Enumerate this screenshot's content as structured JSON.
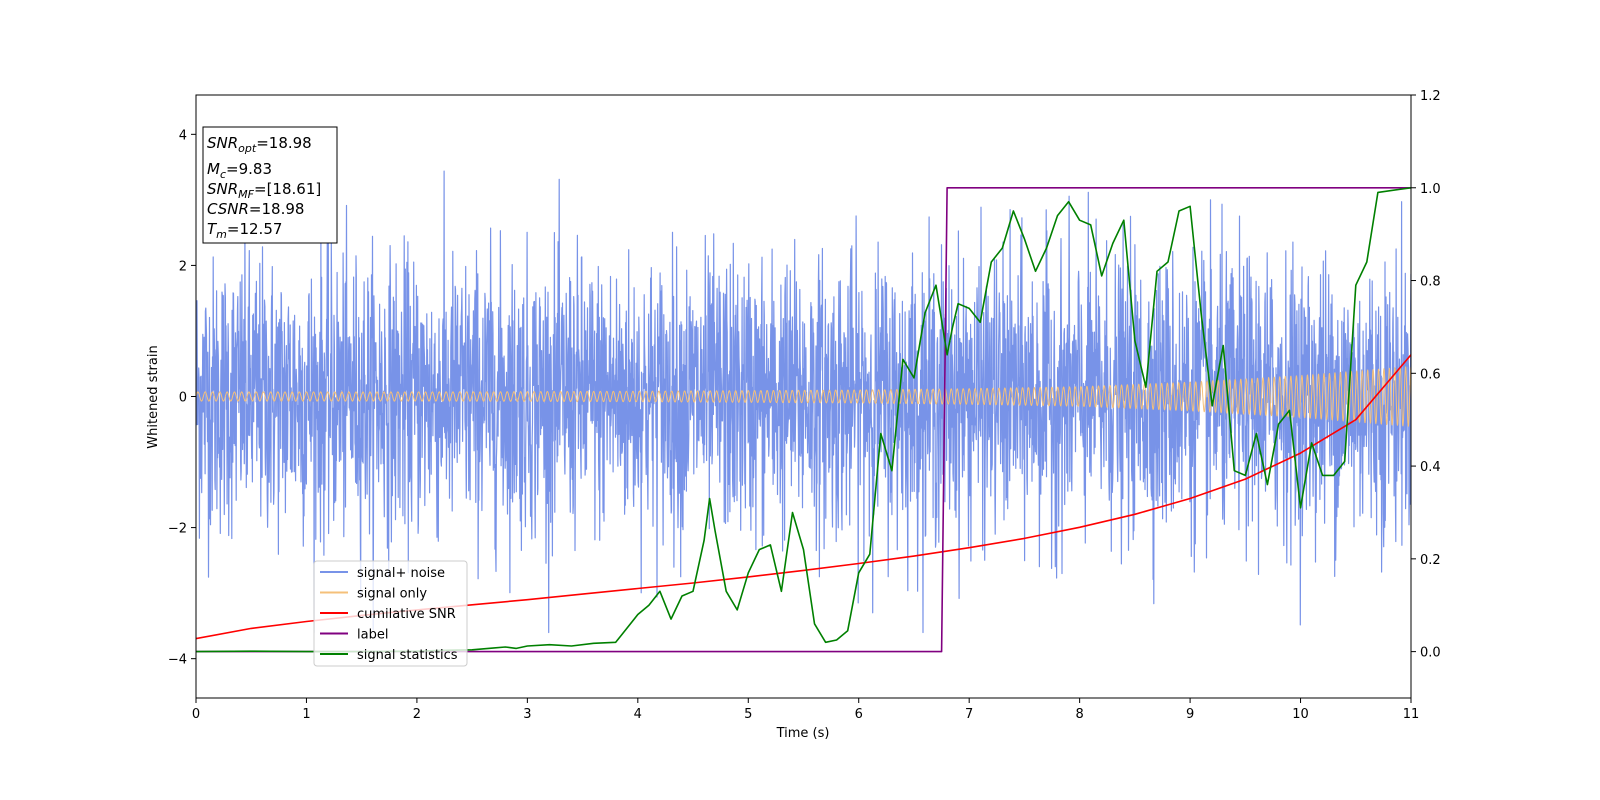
{
  "chart_data": {
    "type": "line",
    "title": "",
    "xlabel": "Time (s)",
    "ylabel": "Whitened strain",
    "xlim": [
      0,
      11
    ],
    "ylim": [
      -4.6,
      4.6
    ],
    "y2lim": [
      -0.1,
      1.2
    ],
    "xticks": [
      0,
      1,
      2,
      3,
      4,
      5,
      6,
      7,
      8,
      9,
      10,
      11
    ],
    "yticks": [
      -4,
      -2,
      0,
      2,
      4
    ],
    "y2ticks": [
      0.0,
      0.2,
      0.4,
      0.6,
      0.8,
      1.0,
      1.2
    ],
    "xtick_labels": [
      "0",
      "1",
      "2",
      "3",
      "4",
      "5",
      "6",
      "7",
      "8",
      "9",
      "10",
      "11"
    ],
    "ytick_labels": [
      "−4",
      "−2",
      "0",
      "2",
      "4"
    ],
    "y2tick_labels": [
      "0.0",
      "0.2",
      "0.4",
      "0.6",
      "0.8",
      "1.0",
      "1.2"
    ],
    "grid": false,
    "legend_position": "lower-left",
    "info_box": {
      "lines": [
        {
          "symbol": "SNR",
          "sub": "opt",
          "value": "=18.98"
        },
        {
          "symbol": "M",
          "sub": "c",
          "value": "=9.83"
        },
        {
          "symbol": "SNR",
          "sub": "MF",
          "value": "=[18.61]"
        },
        {
          "symbol": "CSNR",
          "sub": "",
          "value": "=18.98"
        },
        {
          "symbol": "T",
          "sub": "m",
          "value": "=12.57"
        }
      ]
    },
    "series": [
      {
        "name": "signal+ noise",
        "axis": "left",
        "color": "#7893e8",
        "style": "noise",
        "amplitude_std": 1.05,
        "peak_range": [
          -3.6,
          4.15
        ]
      },
      {
        "name": "signal only",
        "axis": "left",
        "color": "#f5c07a",
        "style": "chirp",
        "envelope": {
          "x": [
            0,
            2,
            4,
            6,
            7,
            8,
            9,
            10,
            11
          ],
          "y": [
            0.07,
            0.07,
            0.08,
            0.1,
            0.12,
            0.15,
            0.22,
            0.32,
            0.46
          ]
        }
      },
      {
        "name": "cumilative SNR",
        "axis": "right",
        "color": "#ff0000",
        "x": [
          0,
          0.5,
          1,
          1.5,
          2,
          2.5,
          3,
          3.5,
          4,
          4.5,
          5,
          5.5,
          6,
          6.5,
          7,
          7.5,
          8,
          8.5,
          9,
          9.5,
          10,
          10.5,
          11
        ],
        "y": [
          0.028,
          0.05,
          0.065,
          0.078,
          0.09,
          0.101,
          0.112,
          0.124,
          0.136,
          0.148,
          0.161,
          0.175,
          0.19,
          0.206,
          0.224,
          0.244,
          0.268,
          0.296,
          0.33,
          0.372,
          0.428,
          0.5,
          0.64
        ]
      },
      {
        "name": "label",
        "axis": "right",
        "color": "#800080",
        "x": [
          0,
          6.75,
          6.8,
          11
        ],
        "y": [
          0,
          0,
          1,
          1
        ]
      },
      {
        "name": "signal statistics",
        "axis": "right",
        "color": "#008000",
        "x": [
          0,
          0.5,
          1,
          1.5,
          2,
          2.3,
          2.5,
          2.7,
          2.8,
          2.9,
          3.0,
          3.2,
          3.4,
          3.6,
          3.8,
          3.9,
          4.0,
          4.1,
          4.2,
          4.3,
          4.4,
          4.5,
          4.6,
          4.65,
          4.7,
          4.8,
          4.9,
          5.0,
          5.1,
          5.2,
          5.3,
          5.4,
          5.5,
          5.6,
          5.7,
          5.8,
          5.9,
          6.0,
          6.1,
          6.2,
          6.3,
          6.4,
          6.5,
          6.6,
          6.7,
          6.8,
          6.85,
          6.9,
          7.0,
          7.1,
          7.2,
          7.3,
          7.4,
          7.5,
          7.6,
          7.7,
          7.8,
          7.9,
          8.0,
          8.1,
          8.2,
          8.3,
          8.4,
          8.5,
          8.6,
          8.7,
          8.8,
          8.9,
          9.0,
          9.1,
          9.2,
          9.3,
          9.4,
          9.5,
          9.6,
          9.7,
          9.8,
          9.9,
          10.0,
          10.1,
          10.2,
          10.3,
          10.4,
          10.5,
          10.6,
          10.7,
          11
        ],
        "y": [
          0.0,
          0.001,
          0.0,
          0.0,
          0.001,
          0.003,
          0.004,
          0.008,
          0.01,
          0.007,
          0.012,
          0.015,
          0.012,
          0.018,
          0.02,
          0.05,
          0.08,
          0.1,
          0.13,
          0.07,
          0.12,
          0.13,
          0.24,
          0.33,
          0.26,
          0.13,
          0.09,
          0.17,
          0.22,
          0.23,
          0.13,
          0.3,
          0.22,
          0.06,
          0.02,
          0.025,
          0.045,
          0.17,
          0.21,
          0.47,
          0.39,
          0.63,
          0.59,
          0.73,
          0.79,
          0.64,
          0.7,
          0.75,
          0.74,
          0.71,
          0.84,
          0.87,
          0.95,
          0.89,
          0.82,
          0.87,
          0.94,
          0.97,
          0.93,
          0.92,
          0.81,
          0.88,
          0.93,
          0.67,
          0.57,
          0.82,
          0.84,
          0.95,
          0.96,
          0.73,
          0.53,
          0.66,
          0.39,
          0.38,
          0.47,
          0.36,
          0.49,
          0.52,
          0.31,
          0.45,
          0.38,
          0.38,
          0.41,
          0.79,
          0.84,
          0.99,
          1.0
        ]
      }
    ]
  }
}
